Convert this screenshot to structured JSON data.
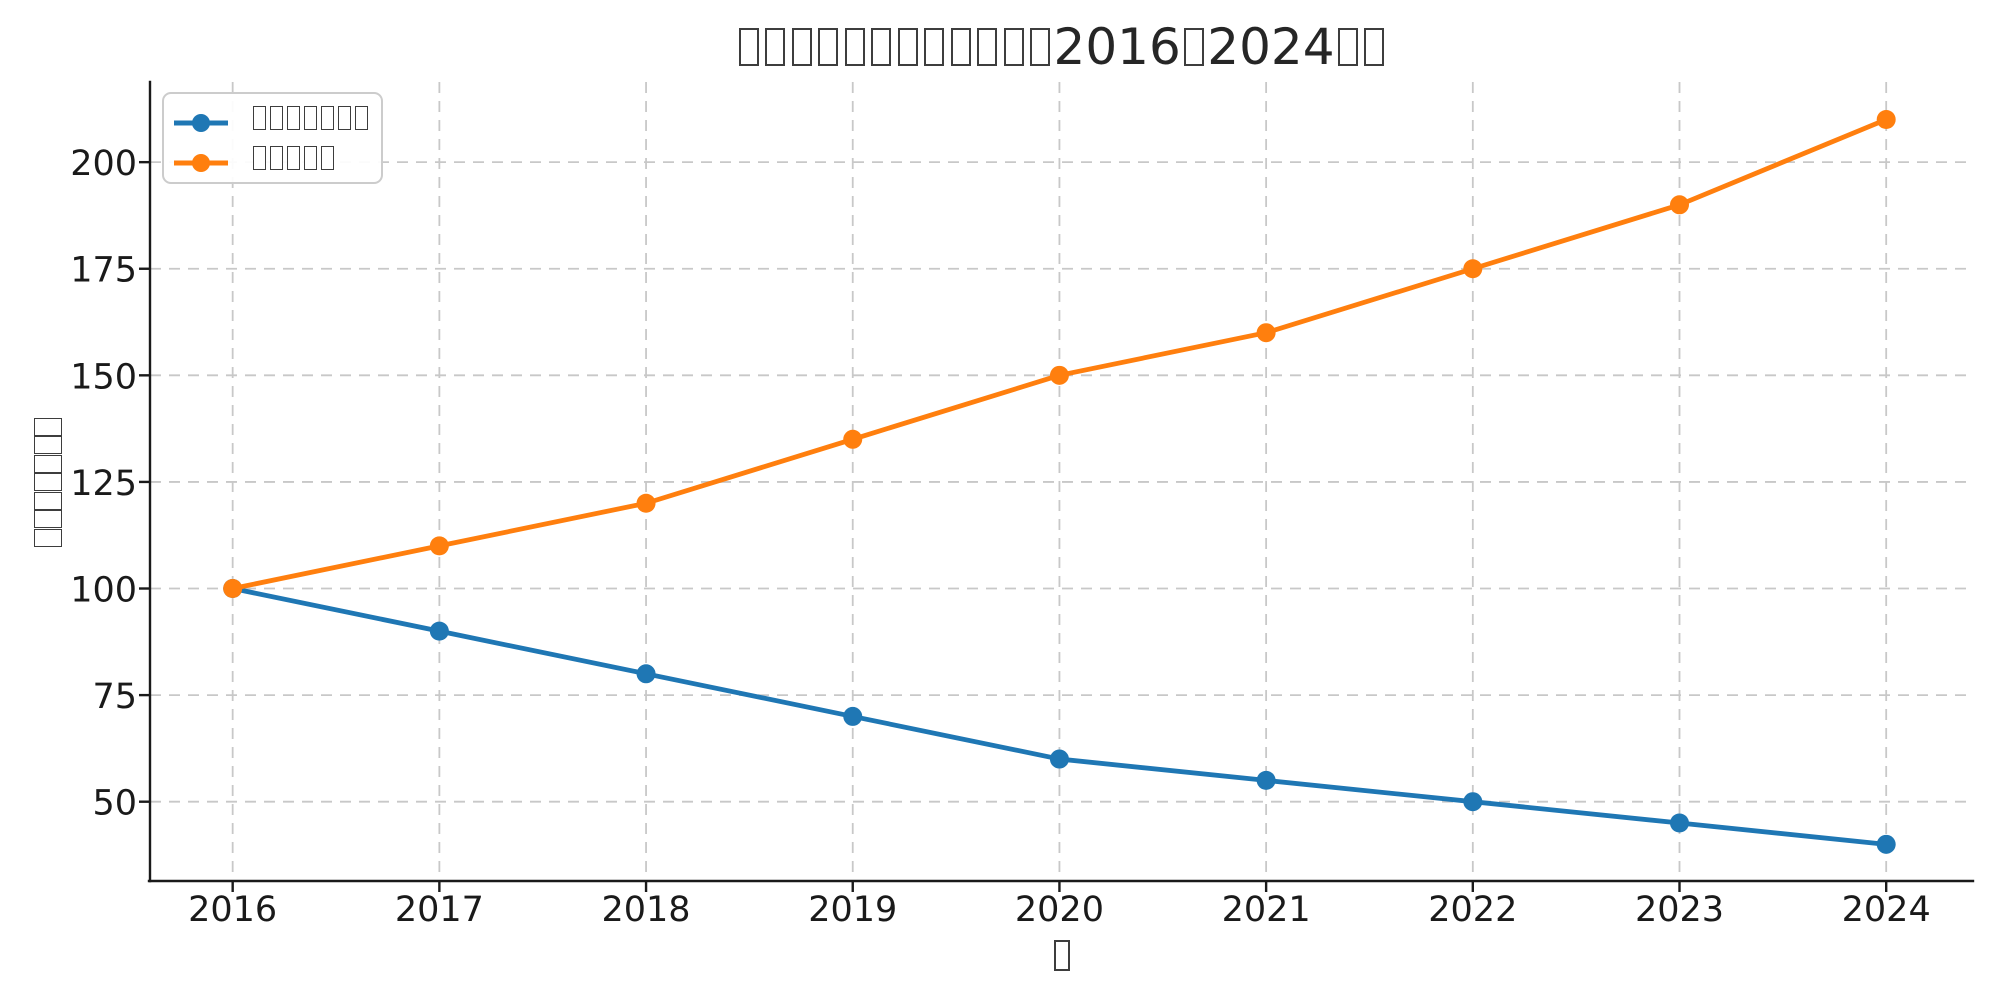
{
  "figure": {
    "title": "□□□□□□□□□□□□2016□2024□□",
    "xlabel": "□",
    "ylabel": "□□□□□□□",
    "colors": {
      "series1": "#1f77b4",
      "series2": "#ff7f0e",
      "grid": "#c8c8c8",
      "axis": "#1a1a1a",
      "text": "#262626",
      "legend_border": "#cccccc"
    }
  },
  "legend": {
    "items": [
      {
        "label": "□□□□□□□",
        "color": "#1f77b4"
      },
      {
        "label": "□□□□□",
        "color": "#ff7f0e"
      }
    ]
  },
  "chart_data": {
    "type": "line",
    "title": "□□□□□□□□□□□□2016□2024□□",
    "xlabel": "□",
    "ylabel": "□□□□□□□",
    "x": [
      2016,
      2017,
      2018,
      2019,
      2020,
      2021,
      2022,
      2023,
      2024
    ],
    "series": [
      {
        "name": "□□□□□□□",
        "color": "#1f77b4",
        "marker": "circle",
        "values": [
          100,
          90,
          80,
          70,
          60,
          55,
          50,
          45,
          40
        ]
      },
      {
        "name": "□□□□□",
        "color": "#ff7f0e",
        "marker": "circle",
        "values": [
          100,
          110,
          120,
          135,
          150,
          160,
          175,
          190,
          210
        ]
      }
    ],
    "xticks": [
      2016,
      2017,
      2018,
      2019,
      2020,
      2021,
      2022,
      2023,
      2024
    ],
    "yticks": [
      50,
      75,
      100,
      125,
      150,
      175,
      200
    ],
    "xlim": [
      2015.6,
      2024.42
    ],
    "ylim": [
      31.4,
      218.8
    ],
    "grid": true,
    "grid_style": "dashed",
    "legend_position": "upper left"
  }
}
